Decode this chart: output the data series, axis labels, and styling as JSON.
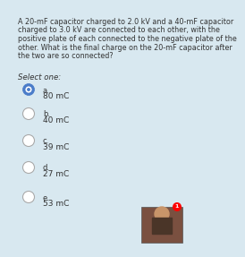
{
  "background_color": "#d8e8f0",
  "question_text_lines": [
    "A 20-mF capacitor charged to 2.0 kV and a 40-mF capacitor",
    "charged to 3.0 kV are connected to each other, with the",
    "positive plate of each connected to the negative plate of the",
    "other. What is the final charge on the 20-mF capacitor after",
    "the two are so connected?"
  ],
  "select_one_label": "Select one:",
  "options": [
    {
      "letter": "a.",
      "text": "80 mC",
      "selected": true
    },
    {
      "letter": "b.",
      "text": "40 mC",
      "selected": false
    },
    {
      "letter": "c.",
      "text": "39 mC",
      "selected": false
    },
    {
      "letter": "d.",
      "text": "27 mC",
      "selected": false
    },
    {
      "letter": "e.",
      "text": "53 mC",
      "selected": false
    }
  ],
  "selected_fill": "#4a7cc9",
  "selected_edge": "#4a7cc9",
  "unselected_fill": "#ffffff",
  "unselected_edge": "#aaaaaa",
  "question_fontsize": 5.8,
  "option_letter_fontsize": 6.0,
  "option_text_fontsize": 6.5,
  "label_fontsize": 6.2,
  "text_color": "#333333",
  "has_thumbnail": true
}
